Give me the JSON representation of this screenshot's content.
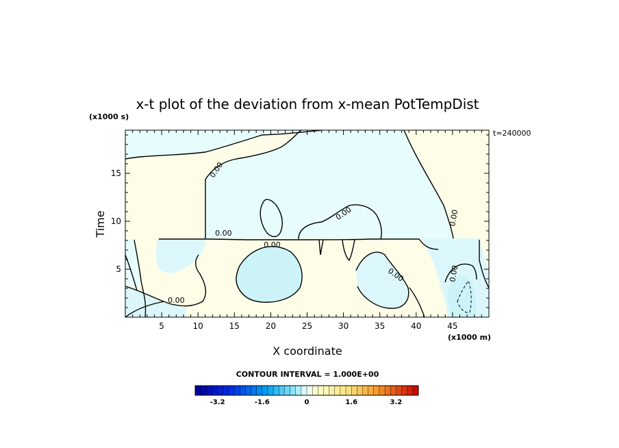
{
  "chart_data": {
    "type": "heatmap",
    "title": "x-t plot of the deviation from x-mean PotTempDist",
    "time_stamp": "t=240000",
    "xlabel": "X coordinate",
    "ylabel": "Time",
    "x_unit": "(x1000 m)",
    "y_unit": "(x1000 s)",
    "xlim": [
      0,
      50
    ],
    "ylim": [
      0,
      19.5
    ],
    "x_ticks": [
      5,
      10,
      15,
      20,
      25,
      30,
      35,
      40,
      45
    ],
    "y_ticks": [
      5,
      10,
      15
    ],
    "contour_interval_text": "CONTOUR INTERVAL = 1.000E+00",
    "contour_label": "0.00",
    "contour_label_positions": [
      {
        "x": 13.5,
        "y": 8.5
      },
      {
        "x": 7.0,
        "y": 1.5
      },
      {
        "x": 20.2,
        "y": 7.3
      },
      {
        "x": 12.8,
        "y": 15.2
      },
      {
        "x": 30.2,
        "y": 10.6
      },
      {
        "x": 37.0,
        "y": 4.2
      },
      {
        "x": 45.5,
        "y": 10.3
      },
      {
        "x": 45.5,
        "y": 4.5
      }
    ],
    "colorbar": {
      "min": -4.0,
      "max": 4.0,
      "step": 0.2,
      "tick_values": [
        -3.2,
        -1.6,
        0,
        1.6,
        3.2
      ],
      "tick_labels": [
        "-3.2",
        "-1.6",
        "0",
        "1.6",
        "3.2"
      ]
    },
    "grid": false
  }
}
